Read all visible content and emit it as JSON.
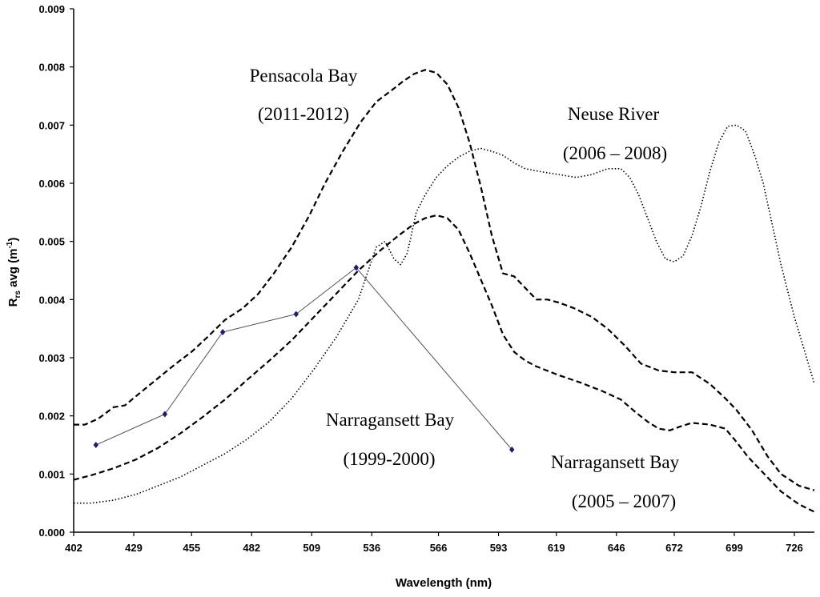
{
  "chart_data": {
    "type": "line",
    "xlabel": "Wavelength (nm)",
    "ylabel_main": "R",
    "ylabel_sub": "rs",
    "ylabel_rest": " avg (m",
    "ylabel_exp": "-1",
    "ylabel_close": ")",
    "xlim": [
      402,
      735
    ],
    "ylim": [
      0,
      0.009
    ],
    "x_ticks": [
      "402",
      "429",
      "455",
      "482",
      "509",
      "536",
      "566",
      "593",
      "619",
      "646",
      "672",
      "699",
      "726"
    ],
    "y_ticks": [
      "0.000",
      "0.001",
      "0.002",
      "0.003",
      "0.004",
      "0.005",
      "0.006",
      "0.007",
      "0.008",
      "0.009"
    ],
    "series": [
      {
        "name": "Pensacola Bay (2011-2012)",
        "style": "dashed",
        "x": [
          402,
          407,
          413,
          420,
          425,
          432,
          440,
          448,
          455,
          462,
          470,
          478,
          485,
          492,
          500,
          508,
          515,
          523,
          531,
          538,
          545,
          550,
          555,
          560,
          565,
          570,
          575,
          580,
          585,
          590,
          595,
          600,
          605,
          610,
          615,
          620,
          627,
          635,
          642,
          650,
          657,
          665,
          672,
          680,
          688,
          695,
          700,
          707,
          714,
          720,
          728,
          735
        ],
        "y": [
          0.00185,
          0.00185,
          0.00195,
          0.00215,
          0.00218,
          0.0024,
          0.00265,
          0.0029,
          0.0031,
          0.00335,
          0.00365,
          0.00385,
          0.0041,
          0.00445,
          0.0049,
          0.00545,
          0.006,
          0.00655,
          0.00705,
          0.0074,
          0.0076,
          0.00775,
          0.00788,
          0.00795,
          0.0079,
          0.0077,
          0.0073,
          0.0067,
          0.00595,
          0.0051,
          0.00445,
          0.0044,
          0.0042,
          0.004,
          0.004,
          0.00395,
          0.00385,
          0.0037,
          0.0035,
          0.0032,
          0.0029,
          0.00278,
          0.00275,
          0.00275,
          0.00255,
          0.0023,
          0.0021,
          0.00175,
          0.0013,
          0.001,
          0.0008,
          0.00072
        ]
      },
      {
        "name": "Neuse River (2006 – 2008)",
        "style": "dotted",
        "x": [
          402,
          410,
          420,
          430,
          440,
          450,
          460,
          470,
          480,
          490,
          500,
          510,
          520,
          530,
          538,
          542,
          546,
          549,
          552,
          556,
          560,
          565,
          570,
          575,
          580,
          585,
          590,
          595,
          600,
          605,
          612,
          620,
          628,
          635,
          642,
          648,
          652,
          656,
          660,
          664,
          668,
          672,
          676,
          680,
          684,
          688,
          692,
          696,
          700,
          704,
          708,
          712,
          716,
          720,
          726,
          735
        ],
        "y": [
          0.0005,
          0.0005,
          0.00055,
          0.00065,
          0.0008,
          0.00095,
          0.00115,
          0.00135,
          0.0016,
          0.0019,
          0.0023,
          0.0028,
          0.00335,
          0.004,
          0.0049,
          0.005,
          0.0047,
          0.0046,
          0.0048,
          0.0055,
          0.0058,
          0.0061,
          0.0063,
          0.00645,
          0.00655,
          0.0066,
          0.00655,
          0.00648,
          0.00635,
          0.00625,
          0.0062,
          0.00615,
          0.0061,
          0.00615,
          0.00625,
          0.00625,
          0.0061,
          0.0058,
          0.0054,
          0.005,
          0.0047,
          0.00465,
          0.00475,
          0.0051,
          0.0056,
          0.0062,
          0.0067,
          0.00698,
          0.007,
          0.0069,
          0.0065,
          0.006,
          0.0053,
          0.0046,
          0.0037,
          0.00255
        ]
      },
      {
        "name": "Narragansett Bay (2005 – 2007)",
        "style": "dashed",
        "x": [
          402,
          410,
          420,
          430,
          440,
          450,
          460,
          470,
          480,
          490,
          500,
          510,
          520,
          530,
          540,
          548,
          555,
          560,
          565,
          570,
          575,
          580,
          585,
          590,
          595,
          600,
          605,
          610,
          620,
          630,
          640,
          648,
          655,
          660,
          665,
          670,
          675,
          680,
          688,
          695,
          700,
          705,
          710,
          715,
          720,
          728,
          735
        ],
        "y": [
          0.0009,
          0.00098,
          0.0011,
          0.00125,
          0.00145,
          0.0017,
          0.00198,
          0.00228,
          0.00262,
          0.00295,
          0.0033,
          0.0037,
          0.0041,
          0.0045,
          0.00485,
          0.0051,
          0.0053,
          0.0054,
          0.00545,
          0.0054,
          0.0052,
          0.0048,
          0.00435,
          0.0039,
          0.0034,
          0.0031,
          0.00295,
          0.00285,
          0.0027,
          0.00257,
          0.00242,
          0.00228,
          0.00205,
          0.0019,
          0.00178,
          0.00175,
          0.00182,
          0.00188,
          0.00185,
          0.00178,
          0.00155,
          0.0013,
          0.0011,
          0.0009,
          0.0007,
          0.00048,
          0.00035
        ]
      },
      {
        "name": "Narragansett Bay (1999-2000)",
        "style": "solid-markers",
        "x": [
          412,
          443,
          469,
          502,
          529,
          599
        ],
        "y": [
          0.0015,
          0.00203,
          0.00344,
          0.00375,
          0.00455,
          0.00142
        ]
      }
    ],
    "annotations": [
      {
        "lines": [
          "Pensacola Bay",
          "(2011-2012)"
        ],
        "series": 0
      },
      {
        "lines": [
          "Neuse River",
          "(2006 – 2008)"
        ],
        "series": 1
      },
      {
        "lines": [
          "Narragansett Bay",
          "(1999-2000)"
        ],
        "series": 3
      },
      {
        "lines": [
          "Narragansett Bay",
          "(2005 – 2007)"
        ],
        "series": 2
      }
    ],
    "colors": {
      "line": "#000000",
      "marker": "#1a1f6e",
      "solid_line": "#555555"
    }
  }
}
